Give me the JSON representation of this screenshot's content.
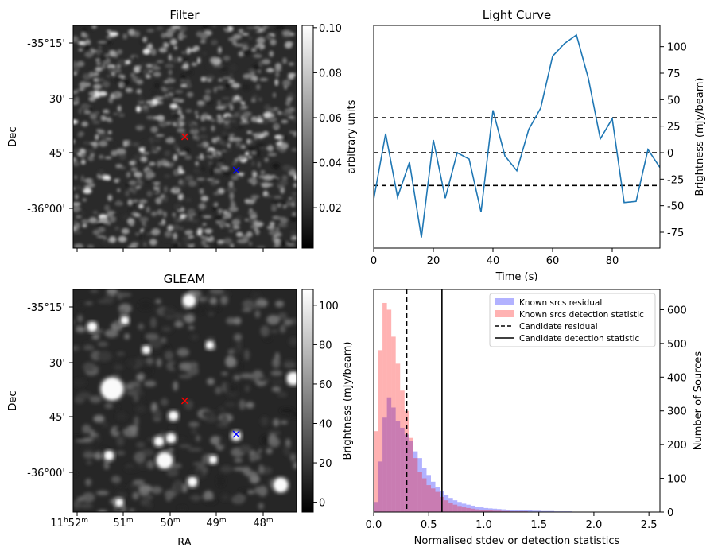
{
  "chart_data": [
    {
      "type": "heatmap",
      "panel": "filter",
      "title": "Filter",
      "ylabel": "Dec",
      "dec_ticks": [
        "-35°15'",
        "30'",
        "45'",
        "-36°00'"
      ],
      "colorbar": {
        "label": "arbitrary units",
        "ticks": [
          "0.10",
          "0.08",
          "0.06",
          "0.04",
          "0.02"
        ],
        "range": [
          0.002,
          0.101
        ],
        "colormap": "gray"
      },
      "markers": [
        {
          "label": "candidate",
          "symbol": "x",
          "color": "#ff0000",
          "ra_frac": 0.5,
          "dec_frac": 0.5
        },
        {
          "label": "nearest known source",
          "symbol": "x",
          "color": "#0000ff",
          "ra_frac": 0.73,
          "dec_frac": 0.65
        }
      ]
    },
    {
      "type": "line",
      "panel": "light-curve",
      "title": "Light Curve",
      "xlabel": "Time (s)",
      "ylabel": "Brightness (mJy/beam)",
      "xlim": [
        0,
        96
      ],
      "ylim": [
        -90,
        120
      ],
      "x_ticks": [
        "0",
        "20",
        "40",
        "60",
        "80"
      ],
      "y_ticks": [
        "100",
        "75",
        "50",
        "25",
        "0",
        "-25",
        "-50",
        "-75"
      ],
      "series": [
        {
          "color": "#1f77b4",
          "x": [
            0,
            4,
            8,
            12,
            16,
            20,
            24,
            28,
            32,
            36,
            40,
            44,
            48,
            52,
            56,
            60,
            64,
            68,
            72,
            76,
            80,
            84,
            88,
            92,
            96
          ],
          "y": [
            -44,
            18,
            -42,
            -9,
            -80,
            12,
            -43,
            0,
            -6,
            -56,
            40,
            -3,
            -17,
            22,
            42,
            91,
            103,
            111,
            70,
            13,
            32,
            -47,
            -46,
            3,
            -14
          ]
        }
      ],
      "hlines": [
        {
          "y": 33,
          "style": "dashed"
        },
        {
          "y": 0,
          "style": "dashed"
        },
        {
          "y": -31,
          "style": "dashed"
        }
      ]
    },
    {
      "type": "heatmap",
      "panel": "gleam",
      "title": "GLEAM",
      "xlabel": "RA",
      "ylabel": "Dec",
      "ra_tick_labels": [
        "52",
        "51",
        "50",
        "49",
        "48"
      ],
      "ra_first_hours": "11",
      "ra_hour_unit": "h",
      "ra_minute_unit": "m",
      "dec_ticks": [
        "-35°15'",
        "30'",
        "45'",
        "-36°00'"
      ],
      "colorbar": {
        "label": "Brightness (mJy/beam)",
        "ticks": [
          "100",
          "80",
          "60",
          "40",
          "20",
          "0"
        ],
        "range": [
          -5,
          108
        ],
        "colormap": "gray"
      },
      "markers": [
        {
          "label": "candidate",
          "symbol": "x",
          "color": "#ff0000",
          "ra_frac": 0.5,
          "dec_frac": 0.5
        },
        {
          "label": "nearest known source",
          "symbol": "x",
          "color": "#0000ff",
          "ra_frac": 0.73,
          "dec_frac": 0.65
        }
      ]
    },
    {
      "type": "bar",
      "panel": "histogram",
      "xlabel": "Normalised stdev or detection statistics",
      "ylabel": "Number of Sources",
      "xlim": [
        0,
        2.6
      ],
      "ylim": [
        0,
        660
      ],
      "x_ticks": [
        "0.0",
        "0.5",
        "1.0",
        "1.5",
        "2.0",
        "2.5"
      ],
      "y_ticks": [
        "600",
        "500",
        "400",
        "300",
        "200",
        "100",
        "0"
      ],
      "bin_width": 0.04,
      "bin_start": 0,
      "legend": {
        "placement": "top-right"
      },
      "series": [
        {
          "name": "Known srcs residual",
          "color": "#0000ff",
          "alpha": 0.3,
          "values": [
            30,
            150,
            280,
            340,
            310,
            270,
            250,
            230,
            210,
            180,
            160,
            130,
            110,
            90,
            75,
            62,
            50,
            42,
            35,
            30,
            25,
            22,
            19,
            16,
            14,
            12,
            11,
            10,
            9,
            8,
            7,
            6,
            6,
            5,
            5,
            5,
            4,
            4,
            3,
            3,
            3,
            2,
            2,
            2,
            2,
            1,
            1,
            1,
            1,
            1,
            1,
            1,
            1,
            1,
            1,
            1,
            1,
            1,
            1,
            1,
            1,
            1,
            1,
            1,
            1
          ]
        },
        {
          "name": "Known srcs detection statistic",
          "color": "#ff0000",
          "alpha": 0.3,
          "values": [
            240,
            480,
            620,
            600,
            520,
            440,
            360,
            300,
            220,
            160,
            120,
            100,
            80,
            70,
            60,
            45,
            35,
            28,
            22,
            18,
            14,
            12,
            10,
            8,
            7,
            6,
            5,
            4,
            4,
            3,
            3,
            2,
            2,
            2,
            2,
            1,
            1,
            1,
            1,
            1,
            1,
            1,
            1,
            1,
            1,
            0,
            0,
            0,
            0,
            0,
            0,
            0,
            0,
            0,
            0,
            0,
            0,
            0,
            0,
            0,
            0,
            0,
            0,
            0,
            0
          ]
        }
      ],
      "vlines": [
        {
          "name": "Candidate residual",
          "x": 0.3,
          "style": "dashed",
          "color": "#000000"
        },
        {
          "name": "Candidate detection statistic",
          "x": 0.62,
          "style": "solid",
          "color": "#000000"
        }
      ]
    }
  ]
}
